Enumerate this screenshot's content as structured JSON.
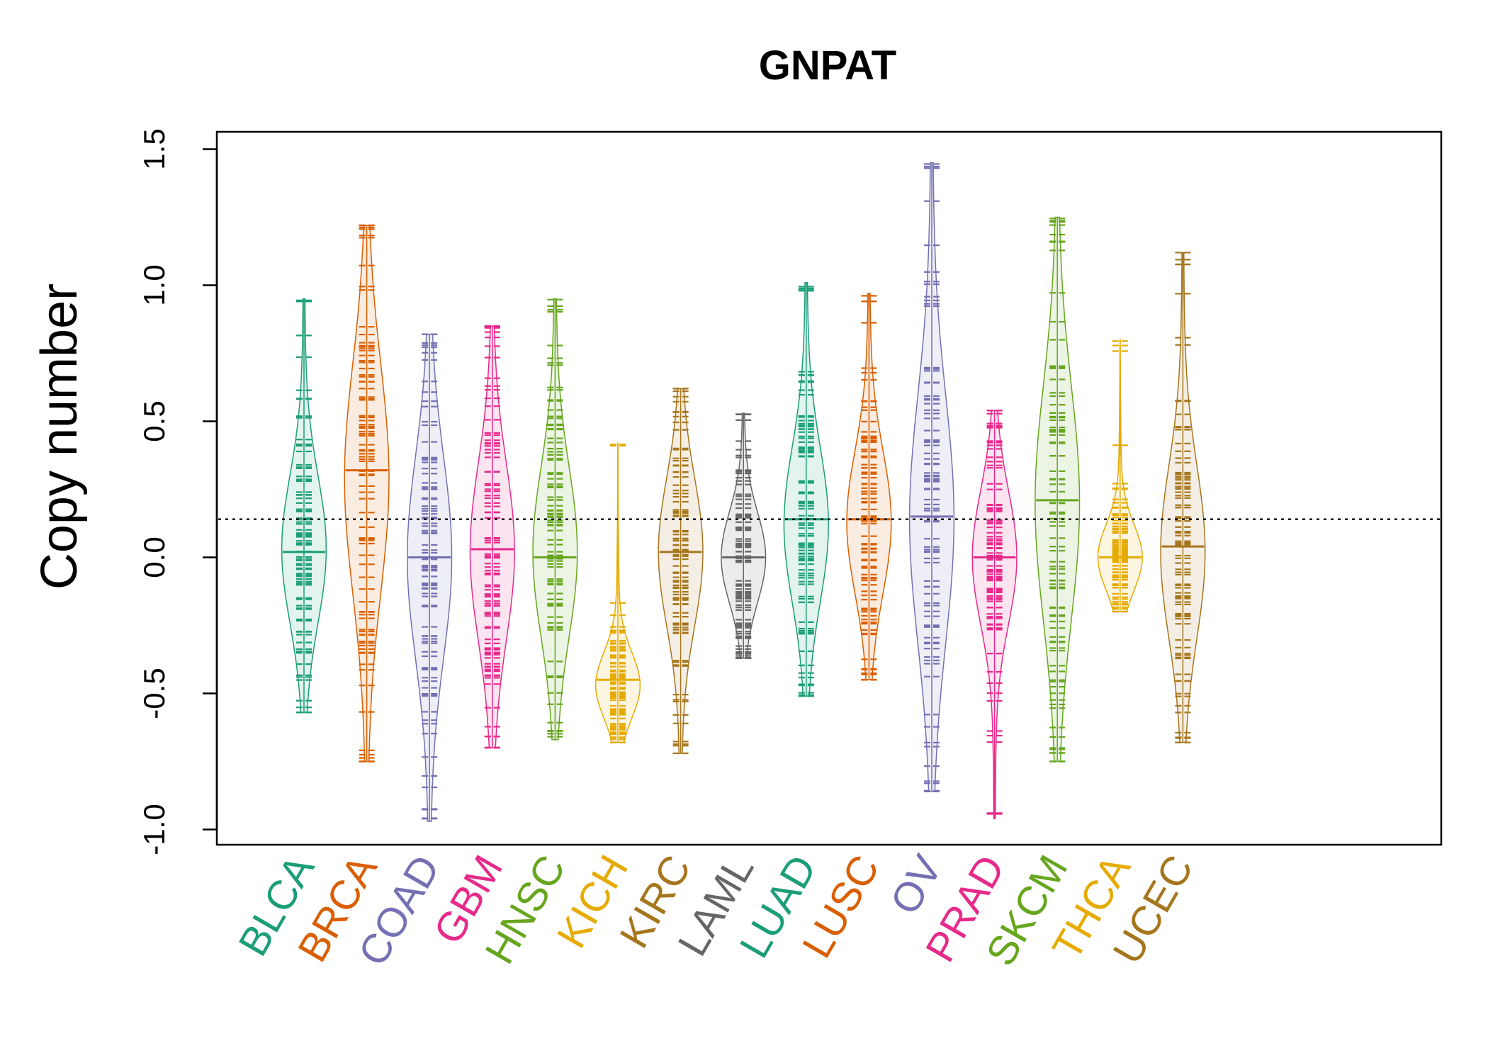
{
  "chart_data": {
    "type": "beanplot",
    "title": "GNPAT",
    "xlabel": "",
    "ylabel": "Copy number",
    "ylim": [
      -1.05,
      1.55
    ],
    "yticks": [
      -1.0,
      -0.5,
      0.0,
      0.5,
      1.0,
      1.5
    ],
    "ytick_labels": [
      "-1.0",
      "-0.5",
      "0.0",
      "0.5",
      "1.0",
      "1.5"
    ],
    "reference_line": 0.14,
    "categories": [
      "BLCA",
      "BRCA",
      "COAD",
      "GBM",
      "HNSC",
      "KICH",
      "KIRC",
      "LAML",
      "LUAD",
      "LUSC",
      "OV",
      "PRAD",
      "SKCM",
      "THCA",
      "UCEC"
    ],
    "colors": [
      "#1b9e77",
      "#d95f02",
      "#7570b3",
      "#e7298a",
      "#66a61e",
      "#e6ab02",
      "#a6761d",
      "#666666",
      "#1b9e77",
      "#d95f02",
      "#7570b3",
      "#e7298a",
      "#66a61e",
      "#e6ab02",
      "#a6761d"
    ],
    "series": [
      {
        "name": "BLCA",
        "min": -0.57,
        "max": 0.95,
        "mean": 0.02,
        "median": 0.03
      },
      {
        "name": "BRCA",
        "min": -0.75,
        "max": 1.22,
        "mean": 0.32,
        "median": 0.29
      },
      {
        "name": "COAD",
        "min": -0.97,
        "max": 0.82,
        "mean": 0.0,
        "median": 0.0
      },
      {
        "name": "GBM",
        "min": -0.7,
        "max": 0.85,
        "mean": 0.03,
        "median": 0.02
      },
      {
        "name": "HNSC",
        "min": -0.67,
        "max": 0.95,
        "mean": 0.0,
        "median": 0.02
      },
      {
        "name": "KICH",
        "min": -0.68,
        "max": 0.42,
        "mean": -0.45,
        "median": -0.47
      },
      {
        "name": "KIRC",
        "min": -0.72,
        "max": 0.62,
        "mean": 0.02,
        "median": 0.02
      },
      {
        "name": "LAML",
        "min": -0.37,
        "max": 0.53,
        "mean": 0.0,
        "median": 0.0
      },
      {
        "name": "LUAD",
        "min": -0.51,
        "max": 1.01,
        "mean": 0.14,
        "median": 0.12
      },
      {
        "name": "LUSC",
        "min": -0.45,
        "max": 0.97,
        "mean": 0.14,
        "median": 0.13
      },
      {
        "name": "OV",
        "min": -0.86,
        "max": 1.45,
        "mean": 0.15,
        "median": 0.14
      },
      {
        "name": "PRAD",
        "min": -0.96,
        "max": 0.54,
        "mean": 0.0,
        "median": 0.0
      },
      {
        "name": "SKCM",
        "min": -0.75,
        "max": 1.25,
        "mean": 0.21,
        "median": 0.2
      },
      {
        "name": "THCA",
        "min": -0.2,
        "max": 0.8,
        "mean": 0.0,
        "median": 0.0
      },
      {
        "name": "UCEC",
        "min": -0.68,
        "max": 1.12,
        "mean": 0.04,
        "median": 0.02
      }
    ]
  }
}
